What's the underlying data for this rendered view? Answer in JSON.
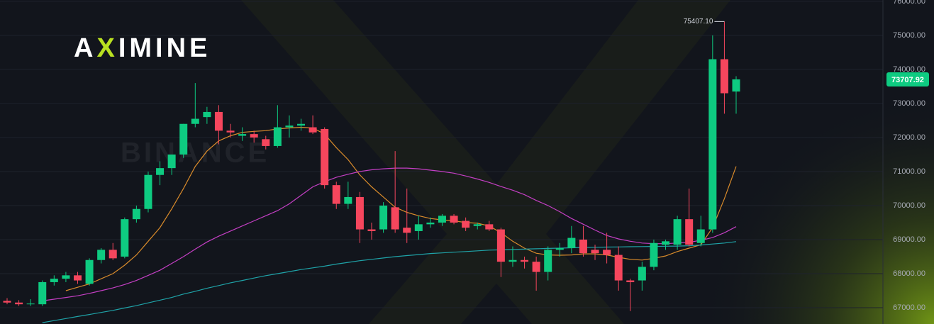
{
  "chart_data": {
    "type": "candlestick",
    "logo_parts": [
      "A",
      "X",
      "IMINE"
    ],
    "watermark": "BINANCE",
    "open": [
      67200,
      67150,
      67100,
      67100,
      67750,
      67850,
      67950,
      67700,
      68400,
      68700,
      68500,
      69600,
      69900,
      70900,
      71100,
      71500,
      72400,
      72600,
      72750,
      72200,
      72050,
      72100,
      71950,
      71750,
      72300,
      72350,
      72300,
      72250,
      70600,
      70050,
      70250,
      69300,
      69300,
      69950,
      69350,
      69250,
      69450,
      69500,
      69700,
      69550,
      69400,
      69450,
      69300,
      68350,
      68400,
      68350,
      68050,
      68700,
      68750,
      69000,
      68700,
      68700,
      68550,
      67800,
      67800,
      68200,
      68850,
      68850,
      69600,
      68900,
      69300,
      74300,
      73350
    ],
    "high": [
      67280,
      67220,
      67250,
      67800,
      67950,
      68050,
      68050,
      68450,
      68750,
      68900,
      69650,
      70000,
      71000,
      71300,
      71500,
      72400,
      73600,
      72900,
      72950,
      72400,
      72300,
      72200,
      72050,
      72950,
      72650,
      72550,
      72650,
      72300,
      70700,
      70700,
      70400,
      69500,
      70100,
      71600,
      70500,
      69700,
      69650,
      69750,
      69750,
      69650,
      69500,
      69550,
      69350,
      68800,
      68500,
      68500,
      68800,
      68900,
      69400,
      69400,
      68850,
      69200,
      68800,
      67850,
      68350,
      69000,
      69000,
      69700,
      70500,
      69700,
      75000,
      75407.1,
      73800
    ],
    "low": [
      67100,
      67050,
      67050,
      67050,
      67650,
      67750,
      67700,
      67650,
      68300,
      68400,
      68450,
      69500,
      69800,
      70600,
      70900,
      71400,
      72300,
      72400,
      71800,
      72000,
      71900,
      71850,
      71650,
      71700,
      72000,
      72200,
      72100,
      70500,
      69900,
      69900,
      68900,
      69000,
      69200,
      69200,
      68900,
      69000,
      69350,
      69400,
      69450,
      69250,
      69300,
      69250,
      67900,
      68200,
      68150,
      67500,
      67800,
      68500,
      68600,
      68500,
      68400,
      68300,
      67500,
      66900,
      67500,
      68100,
      68700,
      68700,
      68800,
      68800,
      69200,
      72700,
      72700
    ],
    "close": [
      67150,
      67100,
      67120,
      67750,
      67850,
      67950,
      67800,
      68400,
      68700,
      68450,
      69600,
      69900,
      70900,
      71100,
      71500,
      72400,
      72550,
      72750,
      72200,
      72150,
      72100,
      72000,
      71750,
      72300,
      72350,
      72400,
      72150,
      70600,
      70050,
      70250,
      69300,
      69250,
      70000,
      69300,
      69200,
      69450,
      69500,
      69700,
      69500,
      69350,
      69450,
      69300,
      68350,
      68400,
      68350,
      68050,
      68700,
      68750,
      69050,
      68600,
      68600,
      68550,
      67800,
      67750,
      68200,
      68900,
      68950,
      69600,
      68850,
      69300,
      74300,
      73300,
      73707.92
    ],
    "up_color": "#0ecb81",
    "down_color": "#f6465d",
    "moving_averages": [
      {
        "color": "#d98b2b",
        "values": [
          null,
          null,
          null,
          null,
          null,
          67500,
          67600,
          67700,
          67850,
          68000,
          68250,
          68550,
          68950,
          69350,
          69900,
          70500,
          71150,
          71600,
          71900,
          72050,
          72150,
          72180,
          72200,
          72250,
          72280,
          72300,
          72280,
          72100,
          71700,
          71350,
          70900,
          70550,
          70250,
          69950,
          69800,
          69700,
          69620,
          69580,
          69550,
          69500,
          69480,
          69400,
          69200,
          68950,
          68750,
          68600,
          68550,
          68540,
          68550,
          68580,
          68580,
          68550,
          68480,
          68420,
          68400,
          68450,
          68520,
          68650,
          68750,
          68850,
          69350,
          70200,
          71150
        ]
      },
      {
        "color": "#c43fc4",
        "values": [
          null,
          null,
          null,
          67200,
          67250,
          67300,
          67350,
          67420,
          67500,
          67580,
          67680,
          67800,
          67950,
          68100,
          68300,
          68500,
          68720,
          68930,
          69100,
          69250,
          69400,
          69550,
          69700,
          69850,
          70050,
          70300,
          70550,
          70700,
          70830,
          70920,
          71000,
          71050,
          71080,
          71100,
          71100,
          71080,
          71040,
          71000,
          70950,
          70870,
          70780,
          70680,
          70560,
          70450,
          70320,
          70150,
          70000,
          69820,
          69620,
          69450,
          69280,
          69120,
          69020,
          68950,
          68900,
          68880,
          68880,
          68900,
          68920,
          68980,
          69060,
          69200,
          69380
        ]
      },
      {
        "color": "#1fa3a8",
        "values": [
          null,
          null,
          null,
          66560,
          66620,
          66680,
          66740,
          66800,
          66860,
          66920,
          66990,
          67060,
          67140,
          67220,
          67300,
          67400,
          67480,
          67570,
          67650,
          67730,
          67800,
          67870,
          67940,
          68000,
          68060,
          68120,
          68170,
          68220,
          68280,
          68330,
          68380,
          68420,
          68460,
          68500,
          68530,
          68560,
          68590,
          68610,
          68630,
          68650,
          68670,
          68690,
          68700,
          68710,
          68720,
          68730,
          68740,
          68750,
          68760,
          68770,
          68775,
          68780,
          68785,
          68790,
          68795,
          68800,
          68805,
          68810,
          68820,
          68840,
          68870,
          68900,
          68940
        ]
      }
    ],
    "high_label": {
      "value": 75407.1,
      "label": "75407.10"
    },
    "ylim": [
      66520,
      76040
    ],
    "yticks": [
      {
        "value": 67000,
        "label": "67000.00"
      },
      {
        "value": 68000,
        "label": "68000.00"
      },
      {
        "value": 69000,
        "label": "69000.00"
      },
      {
        "value": 70000,
        "label": "70000.00"
      },
      {
        "value": 71000,
        "label": "71000.00"
      },
      {
        "value": 72000,
        "label": "72000.00"
      },
      {
        "value": 73000,
        "label": "73000.00"
      },
      {
        "value": 74000,
        "label": "74000.00"
      },
      {
        "value": 75000,
        "label": "75000.00"
      },
      {
        "value": 76000,
        "label": "76000.00"
      }
    ],
    "grid": true
  }
}
